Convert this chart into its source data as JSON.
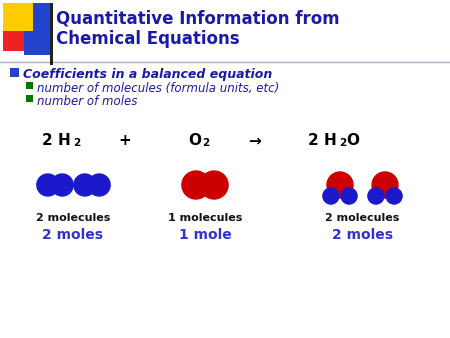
{
  "title_line1": "Quantitative Information from",
  "title_line2": "Chemical Equations",
  "title_color": "#1a1aaa",
  "bg_color": "#ffffff",
  "bullet1": "Coefficients in a balanced equation",
  "bullet1_color": "#1a1aaa",
  "bullet2a": "number of molecules (formula units, etc)",
  "bullet2b": "number of moles",
  "bullet_sub_color": "#1a1aaa",
  "blue_bullet_color": "#2244cc",
  "green_bullet_color": "#007700",
  "eq_color": "#000000",
  "mol_color_blue": "#1a1acc",
  "mol_color_red": "#cc0000",
  "label_molecules_1": "2 molecules",
  "label_molecules_2": "1 molecules",
  "label_molecules_3": "2 molecules",
  "label_moles_1": "2 moles",
  "label_moles_2": "1 mole",
  "label_moles_3": "2 moles",
  "label_color_black": "#111111",
  "label_color_blue": "#3333cc",
  "corner_yellow": "#ffcc00",
  "corner_red": "#ee2222",
  "corner_blue": "#2244cc",
  "corner_dark": "#222222"
}
